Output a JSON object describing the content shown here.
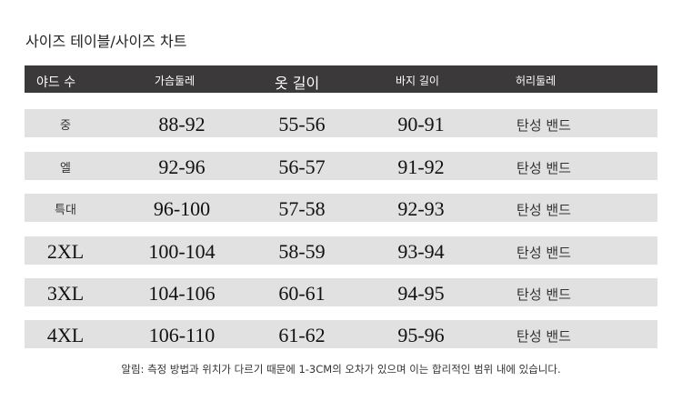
{
  "title": "사이즈 테이블/사이즈 차트",
  "columns": [
    "야드 수",
    "가슴둘레",
    "옷 길이",
    "바지 길이",
    "허리둘레"
  ],
  "rows": [
    [
      "중",
      "88-92",
      "55-56",
      "90-91",
      "탄성 밴드"
    ],
    [
      "엘",
      "92-96",
      "56-57",
      "91-92",
      "탄성 밴드"
    ],
    [
      "특대",
      "96-100",
      "57-58",
      "92-93",
      "탄성 밴드"
    ],
    [
      "2XL",
      "100-104",
      "58-59",
      "93-94",
      "탄성 밴드"
    ],
    [
      "3XL",
      "104-106",
      "60-61",
      "94-95",
      "탄성 밴드"
    ],
    [
      "4XL",
      "106-110",
      "61-62",
      "95-96",
      "탄성 밴드"
    ]
  ],
  "note": "알림: 측정 방법과 위치가 다르기 때문에 1-3CM의 오차가 있으며 이는 합리적인 범위 내에 있습니다.",
  "colors": {
    "header_bg": "#3b3939",
    "row_bg": "#e1e1e1"
  }
}
